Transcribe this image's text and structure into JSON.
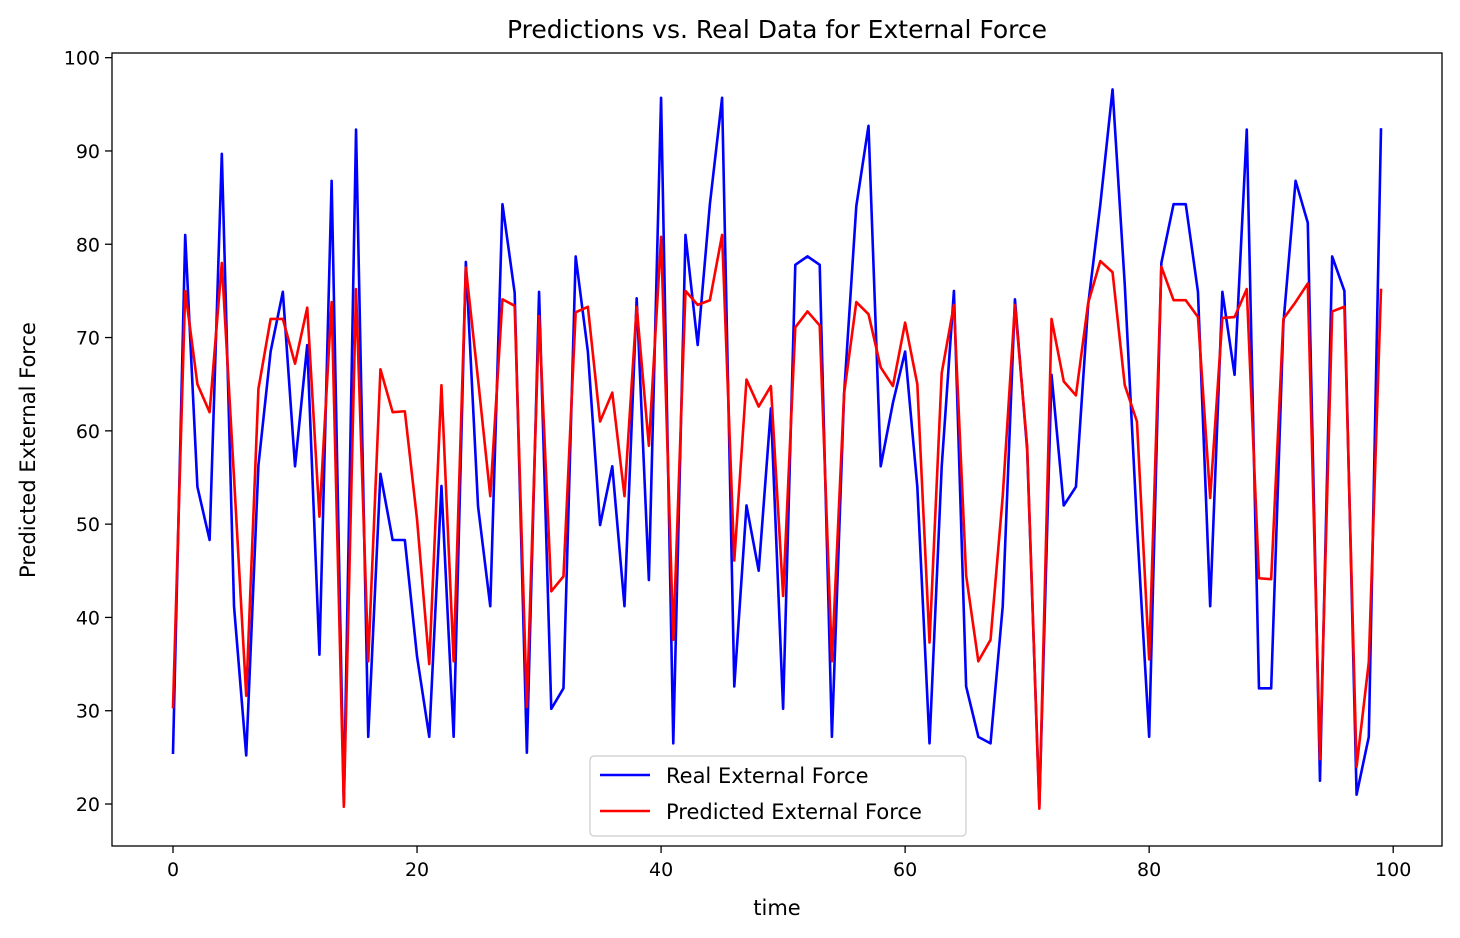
{
  "chart_data": {
    "type": "line",
    "title": "Predictions vs. Real Data for External Force",
    "xlabel": "time",
    "ylabel": "Predicted External Force",
    "xlim": [
      -5,
      104
    ],
    "ylim": [
      15.5,
      100.5
    ],
    "xticks": [
      0,
      20,
      40,
      60,
      80,
      100
    ],
    "yticks": [
      20,
      30,
      40,
      50,
      60,
      70,
      80,
      90,
      100
    ],
    "grid": false,
    "legend_position": "lower-center",
    "series": [
      {
        "name": "Real External Force",
        "color": "#0000ff",
        "values": [
          25.5,
          81,
          54,
          48.3,
          89.7,
          41.2,
          25.2,
          56.3,
          68.5,
          74.9,
          56.2,
          69.2,
          36,
          86.8,
          20,
          92.3,
          27.2,
          55.4,
          48.3,
          48.3,
          35.8,
          27.2,
          54.1,
          27.2,
          78.1,
          51.9,
          41.2,
          84.3,
          74.8,
          25.5,
          74.9,
          30.2,
          32.4,
          78.7,
          68.5,
          49.9,
          56.2,
          41.2,
          74.2,
          44,
          95.7,
          26.5,
          81,
          69.2,
          84.3,
          95.7,
          32.6,
          52,
          45,
          62.4,
          30.2,
          77.8,
          78.7,
          77.8,
          27.2,
          64,
          84.1,
          92.7,
          56.2,
          63,
          68.5,
          54,
          26.5,
          56.2,
          75,
          32.6,
          27.2,
          26.5,
          41.2,
          74.1,
          58,
          19.8,
          66,
          52,
          54,
          73.5,
          84.3,
          96.6,
          75.7,
          49.9,
          27.2,
          78,
          84.3,
          84.3,
          74.9,
          41.2,
          74.9,
          66,
          92.3,
          32.4,
          32.4,
          71.5,
          86.8,
          82.3,
          22.5,
          78.7,
          75,
          21,
          27.2,
          92.3
        ]
      },
      {
        "name": "Predicted External Force",
        "color": "#ff0000",
        "values": [
          30.4,
          75,
          65,
          62,
          78,
          55,
          31.6,
          64.5,
          72,
          72,
          67.2,
          73.2,
          50.8,
          73.8,
          19.7,
          75.2,
          35.3,
          66.6,
          62,
          62.1,
          50.5,
          35,
          64.9,
          35.3,
          77.5,
          65.5,
          53,
          74.1,
          73.4,
          30.4,
          72.3,
          42.8,
          44.4,
          72.7,
          73.3,
          61,
          64.1,
          53,
          73.3,
          58.4,
          80.8,
          37.6,
          75,
          73.5,
          74,
          81,
          46.1,
          65.5,
          62.6,
          64.8,
          42.3,
          71.1,
          72.8,
          71.3,
          35.3,
          64,
          73.8,
          72.5,
          66.8,
          64.8,
          71.6,
          65,
          37.3,
          66.2,
          73.5,
          44.5,
          35.3,
          37.6,
          53,
          73.5,
          58.4,
          19.5,
          72,
          65.3,
          63.8,
          73.7,
          78.2,
          77,
          64.9,
          61,
          35.5,
          77.6,
          74,
          74,
          72.2,
          52.8,
          72.1,
          72.2,
          75.2,
          44.2,
          44.1,
          72,
          73.8,
          75.8,
          24.8,
          72.8,
          73.3,
          24,
          35.2,
          75.1
        ]
      }
    ]
  }
}
